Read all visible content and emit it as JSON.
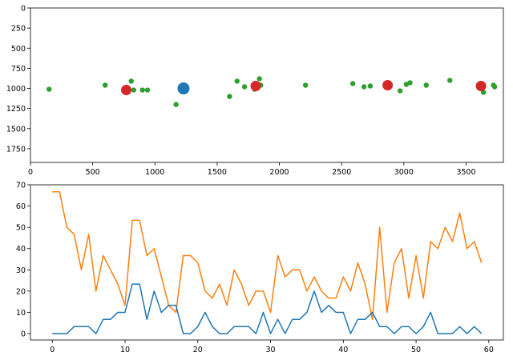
{
  "chart_data": [
    {
      "type": "scatter",
      "title": "",
      "xlabel": "",
      "ylabel": "",
      "xlim": [
        0,
        3800
      ],
      "ylim": [
        1920,
        0
      ],
      "y_inverted": true,
      "grid": false,
      "xticks": [
        0,
        500,
        1000,
        1500,
        2000,
        2500,
        3000,
        3500
      ],
      "yticks": [
        0,
        250,
        500,
        750,
        1000,
        1250,
        1500,
        1750
      ],
      "series": [
        {
          "name": "green points",
          "color": "#2ca02c",
          "marker_size": "small",
          "points": [
            [
              150,
              1010
            ],
            [
              600,
              960
            ],
            [
              810,
              910
            ],
            [
              830,
              1020
            ],
            [
              900,
              1020
            ],
            [
              940,
              1020
            ],
            [
              1170,
              1200
            ],
            [
              1600,
              1100
            ],
            [
              1660,
              910
            ],
            [
              1720,
              980
            ],
            [
              1800,
              1010
            ],
            [
              1810,
              940
            ],
            [
              1840,
              880
            ],
            [
              1850,
              960
            ],
            [
              2210,
              960
            ],
            [
              2590,
              940
            ],
            [
              2680,
              980
            ],
            [
              2730,
              970
            ],
            [
              2870,
              960
            ],
            [
              2970,
              1030
            ],
            [
              3020,
              950
            ],
            [
              3050,
              930
            ],
            [
              3180,
              960
            ],
            [
              3370,
              900
            ],
            [
              3640,
              1050
            ],
            [
              3720,
              960
            ],
            [
              3730,
              980
            ]
          ]
        },
        {
          "name": "red points",
          "color": "#d62728",
          "marker_size": "medium",
          "points": [
            [
              770,
              1020
            ],
            [
              1810,
              970
            ],
            [
              2870,
              960
            ],
            [
              3620,
              970
            ]
          ]
        },
        {
          "name": "blue point",
          "color": "#1f77b4",
          "marker_size": "large",
          "points": [
            [
              1230,
              1000
            ]
          ]
        }
      ]
    },
    {
      "type": "line",
      "title": "",
      "xlabel": "",
      "ylabel": "",
      "xlim": [
        -3,
        62
      ],
      "ylim": [
        -3,
        70
      ],
      "grid": false,
      "xticks": [
        0,
        10,
        20,
        30,
        40,
        50,
        60
      ],
      "yticks": [
        0,
        10,
        20,
        30,
        40,
        50,
        60,
        70
      ],
      "x": [
        0,
        1,
        2,
        3,
        4,
        5,
        6,
        7,
        8,
        9,
        10,
        11,
        12,
        13,
        14,
        15,
        16,
        17,
        18,
        19,
        20,
        21,
        22,
        23,
        24,
        25,
        26,
        27,
        28,
        29,
        30,
        31,
        32,
        33,
        34,
        35,
        36,
        37,
        38,
        39,
        40,
        41,
        42,
        43,
        44,
        45,
        46,
        47,
        48,
        49,
        50,
        51,
        52,
        53,
        54,
        55,
        56,
        57,
        58,
        59
      ],
      "series": [
        {
          "name": "orange",
          "color": "#ff7f0e",
          "values": [
            66.7,
            66.7,
            50,
            46.7,
            30,
            46.7,
            20,
            36.7,
            30,
            23.3,
            13.3,
            53.3,
            53.3,
            36.7,
            40,
            26.7,
            13.3,
            10,
            36.7,
            36.7,
            33.3,
            20,
            16.7,
            23.3,
            13.3,
            30,
            23.3,
            13.3,
            20,
            20,
            10,
            36.7,
            26.7,
            30,
            30,
            20,
            26.7,
            20,
            16.7,
            16.7,
            26.7,
            20,
            33.3,
            23.3,
            6.7,
            50,
            10,
            33.3,
            40,
            16.7,
            36.7,
            16.7,
            43.3,
            40,
            50,
            43.3,
            56.7,
            40,
            43.3,
            33.3
          ]
        },
        {
          "name": "blue",
          "color": "#1f77b4",
          "values": [
            0,
            0,
            0,
            3.3,
            3.3,
            3.3,
            0,
            6.7,
            6.7,
            10,
            10,
            23.3,
            23.3,
            6.7,
            20,
            10,
            13.3,
            13.3,
            0,
            0,
            3.3,
            10,
            3.3,
            0,
            0,
            3.3,
            3.3,
            3.3,
            0,
            10,
            0,
            6.7,
            0,
            6.7,
            6.7,
            10,
            20,
            10,
            13.3,
            10,
            10,
            0,
            6.7,
            6.7,
            10,
            3.3,
            3.3,
            0,
            3.3,
            3.3,
            0,
            3.3,
            10,
            0,
            0,
            0,
            3.3,
            0,
            3.3,
            0
          ]
        }
      ]
    }
  ]
}
